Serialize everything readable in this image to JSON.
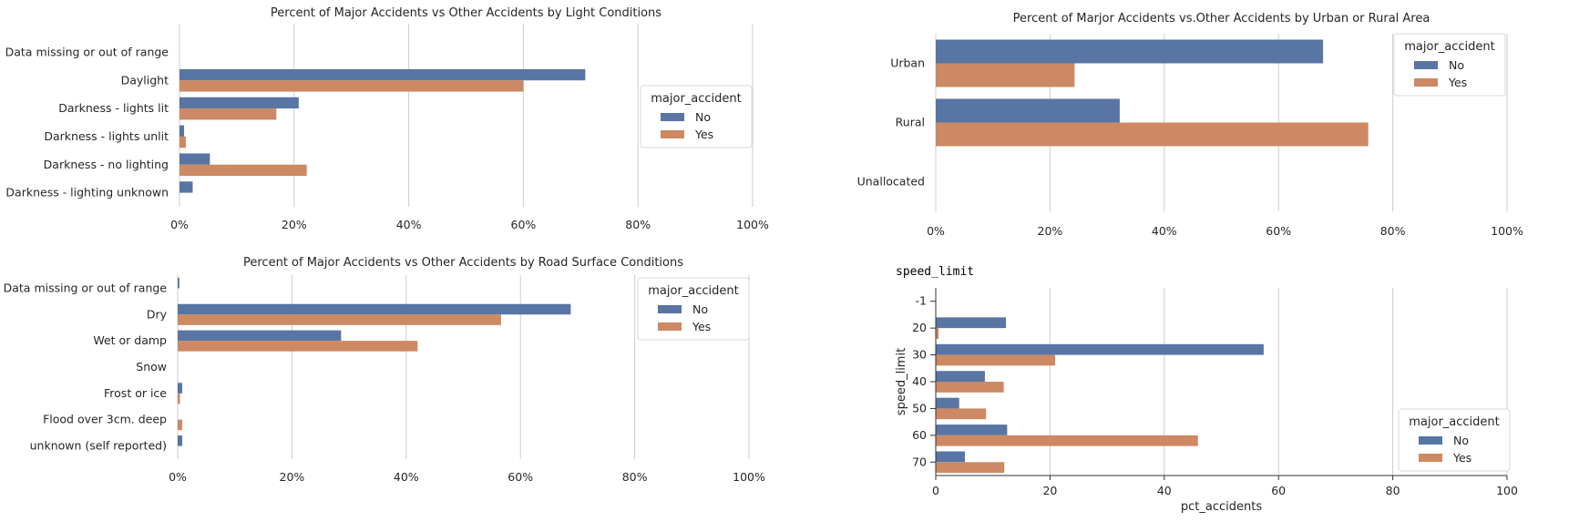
{
  "colors": {
    "no": "#5875A4",
    "yes": "#CC8963",
    "grid": "#CCCCCC"
  },
  "header_text": "speed_limit",
  "chart_data": [
    {
      "id": "light",
      "type": "bar",
      "orientation": "horizontal",
      "title": "Percent of Major Accidents vs Other Accidents by Light Conditions",
      "xlabel": "",
      "ylabel": "",
      "categories": [
        "Data missing or out of range",
        "Daylight",
        "Darkness - lights lit",
        "Darkness - lights unlit",
        "Darkness - no lighting",
        "Darkness - lighting unknown"
      ],
      "series": [
        {
          "name": "No",
          "values": [
            0,
            70.8,
            20.8,
            0.8,
            5.3,
            2.3
          ]
        },
        {
          "name": "Yes",
          "values": [
            0,
            60.0,
            16.9,
            1.1,
            22.2,
            0
          ]
        }
      ],
      "xlim": [
        0,
        100
      ],
      "xticks": [
        "0%",
        "20%",
        "40%",
        "60%",
        "80%",
        "100%"
      ],
      "grid": true,
      "legend": {
        "title": "major_accident",
        "entries": [
          "No",
          "Yes"
        ],
        "placement": "center-right"
      }
    },
    {
      "id": "urban",
      "type": "bar",
      "orientation": "horizontal",
      "title": "Percent of Marjor Accidents vs.Other Accidents by Urban or Rural Area",
      "xlabel": "",
      "ylabel": "",
      "categories": [
        "Urban",
        "Rural",
        "Unallocated"
      ],
      "series": [
        {
          "name": "No",
          "values": [
            67.8,
            32.2,
            0
          ]
        },
        {
          "name": "Yes",
          "values": [
            24.3,
            75.7,
            0
          ]
        }
      ],
      "xlim": [
        0,
        100
      ],
      "xticks": [
        "0%",
        "20%",
        "40%",
        "60%",
        "80%",
        "100%"
      ],
      "grid": true,
      "legend": {
        "title": "major_accident",
        "entries": [
          "No",
          "Yes"
        ],
        "placement": "top-right"
      }
    },
    {
      "id": "road",
      "type": "bar",
      "orientation": "horizontal",
      "title": "Percent of Major Accidents vs Other Accidents by Road Surface Conditions",
      "xlabel": "",
      "ylabel": "",
      "categories": [
        "Data missing or out of range",
        "Dry",
        "Wet or damp",
        "Snow",
        "Frost or ice",
        "Flood over 3cm. deep",
        "unknown (self reported)"
      ],
      "series": [
        {
          "name": "No",
          "values": [
            0.3,
            68.8,
            28.6,
            0,
            0.8,
            0,
            0.8
          ]
        },
        {
          "name": "Yes",
          "values": [
            0,
            56.6,
            42.0,
            0,
            0.4,
            0.8,
            0
          ]
        }
      ],
      "xlim": [
        0,
        100
      ],
      "xticks": [
        "0%",
        "20%",
        "40%",
        "60%",
        "80%",
        "100%"
      ],
      "grid": true,
      "legend": {
        "title": "major_accident",
        "entries": [
          "No",
          "Yes"
        ],
        "placement": "top-right"
      }
    },
    {
      "id": "speed",
      "type": "bar",
      "orientation": "horizontal",
      "title": "",
      "xlabel": "pct_accidents",
      "ylabel": "speed_limit",
      "categories": [
        "-1",
        "20",
        "30",
        "40",
        "50",
        "60",
        "70"
      ],
      "series": [
        {
          "name": "No",
          "values": [
            0,
            12.3,
            57.4,
            8.6,
            4.1,
            12.5,
            5.1
          ]
        },
        {
          "name": "Yes",
          "values": [
            0,
            0.5,
            20.9,
            11.9,
            8.8,
            45.9,
            12.0
          ]
        }
      ],
      "xlim": [
        0,
        100
      ],
      "xticks": [
        "0",
        "20",
        "40",
        "60",
        "80",
        "100"
      ],
      "grid": true,
      "legend": {
        "title": "major_accident",
        "entries": [
          "No",
          "Yes"
        ],
        "placement": "lower-right"
      }
    }
  ]
}
